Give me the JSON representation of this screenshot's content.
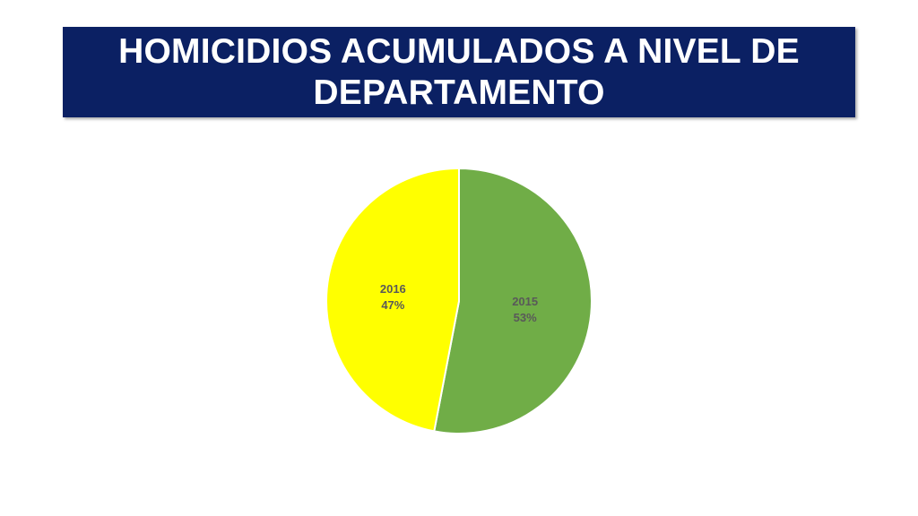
{
  "slide": {
    "title": "HOMICIDIOS ACUMULADOS A NIVEL DE DEPARTAMENTO"
  },
  "colors": {
    "banner": "#0b2063",
    "slice_2015": "#70ad47",
    "slice_2016": "#ffff00",
    "label": "#595959"
  },
  "chart_data": {
    "type": "pie",
    "title": "",
    "categories": [
      "2015",
      "2016"
    ],
    "values": [
      53,
      47
    ],
    "labels": [
      {
        "category": "2015",
        "percent": "53%"
      },
      {
        "category": "2016",
        "percent": "47%"
      }
    ],
    "colors": [
      "#70ad47",
      "#ffff00"
    ],
    "legend": "none"
  }
}
